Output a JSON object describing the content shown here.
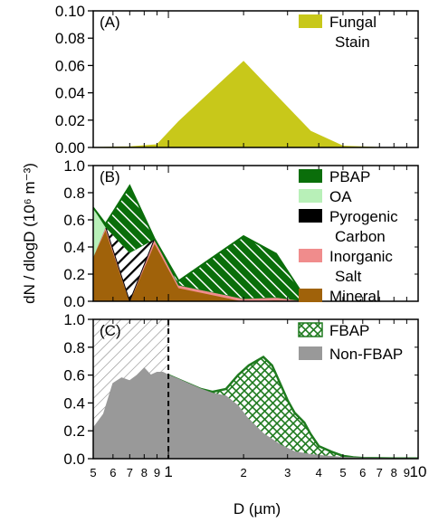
{
  "figure": {
    "ylabel": "dN / dlogD (10⁶ m⁻³)",
    "xlabel": "D (µm)",
    "xlim": [
      0.5,
      10
    ],
    "x_scale": "log",
    "x_tick_labels": [
      {
        "v": 0.5,
        "t": "5"
      },
      {
        "v": 0.6,
        "t": "6"
      },
      {
        "v": 0.7,
        "t": "7"
      },
      {
        "v": 0.8,
        "t": "8"
      },
      {
        "v": 0.9,
        "t": "9"
      },
      {
        "v": 1,
        "t": "1",
        "major": true
      },
      {
        "v": 2,
        "t": "2"
      },
      {
        "v": 3,
        "t": "3"
      },
      {
        "v": 4,
        "t": "4"
      },
      {
        "v": 5,
        "t": "5"
      },
      {
        "v": 6,
        "t": "6"
      },
      {
        "v": 7,
        "t": "7"
      },
      {
        "v": 8,
        "t": "8"
      },
      {
        "v": 9,
        "t": "9"
      },
      {
        "v": 10,
        "t": "10",
        "major": true
      }
    ]
  },
  "colors": {
    "fungal": "#c8c81a",
    "pbap": "#0a6e0a",
    "oa": "#b8f0b8",
    "pyrogenic": "#000000",
    "inorganic": "#f08c8c",
    "mineral": "#a0620a",
    "fbap": "#1e7a1e",
    "nonfbap": "#999999"
  },
  "chart_data": [
    {
      "type": "area",
      "panel_label": "(A)",
      "ylim": [
        0,
        0.1
      ],
      "y_ticks": [
        "0.00",
        "0.02",
        "0.04",
        "0.06",
        "0.08",
        "0.10"
      ],
      "legend_position": "top-right",
      "series": [
        {
          "name": "Fungal\nStain",
          "legend": [
            "Fungal",
            "Stain"
          ],
          "x": [
            0.5,
            0.7,
            0.9,
            1.1,
            2.0,
            2.8,
            3.7,
            5.0,
            7.0,
            10.0
          ],
          "values": [
            0.0,
            0.0005,
            0.002,
            0.019,
            0.063,
            0.035,
            0.012,
            0.001,
            0.0,
            0.0
          ]
        }
      ]
    },
    {
      "type": "area",
      "stacked": true,
      "panel_label": "(B)",
      "ylim": [
        0,
        1.0
      ],
      "y_ticks": [
        "0.0",
        "0.2",
        "0.4",
        "0.6",
        "0.8",
        "1.0"
      ],
      "legend_position": "top-right",
      "x": [
        0.5,
        0.56,
        0.7,
        0.88,
        1.1,
        2.0,
        2.7,
        3.6
      ],
      "series": [
        {
          "name": "Mineral",
          "legend": [
            "Mineral"
          ],
          "values": [
            0.33,
            0.53,
            0.0,
            0.43,
            0.1,
            0.0,
            0.01,
            0.0
          ]
        },
        {
          "name": "Inorganic Salt",
          "legend": [
            "Inorganic",
            "Salt"
          ],
          "values": [
            0.0,
            0.02,
            0.0,
            0.03,
            0.02,
            0.02,
            0.02,
            0.0
          ]
        },
        {
          "name": "Pyrogenic Carbon",
          "legend": [
            "Pyrogenic",
            "Carbon"
          ],
          "values": [
            0.0,
            0.0,
            0.36,
            0.0,
            0.0,
            0.0,
            0.0,
            0.0
          ]
        },
        {
          "name": "OA",
          "legend": [
            "OA"
          ],
          "values": [
            0.36,
            0.0,
            0.0,
            0.0,
            0.0,
            0.0,
            0.0,
            0.0
          ]
        },
        {
          "name": "PBAP",
          "legend": [
            "PBAP"
          ],
          "values": [
            0.0,
            0.02,
            0.49,
            0.0,
            0.03,
            0.46,
            0.32,
            0.0
          ]
        }
      ]
    },
    {
      "type": "area",
      "panel_label": "(C)",
      "ylim": [
        0,
        1.0
      ],
      "y_ticks": [
        "0.0",
        "0.2",
        "0.4",
        "0.6",
        "0.8",
        "1.0"
      ],
      "legend_position": "top-right",
      "vline_x": 1.0,
      "hatched_region_x": [
        0.5,
        1.0
      ],
      "series": [
        {
          "name": "Non-FBAP",
          "legend": [
            "Non-FBAP"
          ],
          "x": [
            0.5,
            0.55,
            0.6,
            0.65,
            0.7,
            0.75,
            0.8,
            0.85,
            0.9,
            0.95,
            1.0,
            1.1,
            1.2,
            1.35,
            1.5,
            1.7,
            1.9,
            2.1,
            2.4,
            2.8,
            3.2,
            3.7,
            4.2,
            5.0,
            6.0,
            7.0,
            8.0,
            10.0
          ],
          "values": [
            0.22,
            0.32,
            0.54,
            0.58,
            0.56,
            0.6,
            0.65,
            0.6,
            0.62,
            0.62,
            0.6,
            0.57,
            0.54,
            0.5,
            0.47,
            0.45,
            0.38,
            0.28,
            0.18,
            0.1,
            0.05,
            0.03,
            0.02,
            0.01,
            0.005,
            0.003,
            0.002,
            0.001
          ]
        },
        {
          "name": "FBAP",
          "legend": [
            "FBAP"
          ],
          "x": [
            1.0,
            1.35,
            1.5,
            1.7,
            1.9,
            2.1,
            2.4,
            2.6,
            2.8,
            3.0,
            3.2,
            3.5,
            3.7,
            4.0,
            4.5,
            5.0,
            5.5,
            6.0,
            7.0,
            8.0,
            10.0
          ],
          "values": [
            0.6,
            0.5,
            0.48,
            0.5,
            0.6,
            0.67,
            0.73,
            0.67,
            0.54,
            0.42,
            0.33,
            0.26,
            0.18,
            0.09,
            0.05,
            0.02,
            0.01,
            0.005,
            0.003,
            0.002,
            0.001
          ]
        }
      ]
    }
  ]
}
